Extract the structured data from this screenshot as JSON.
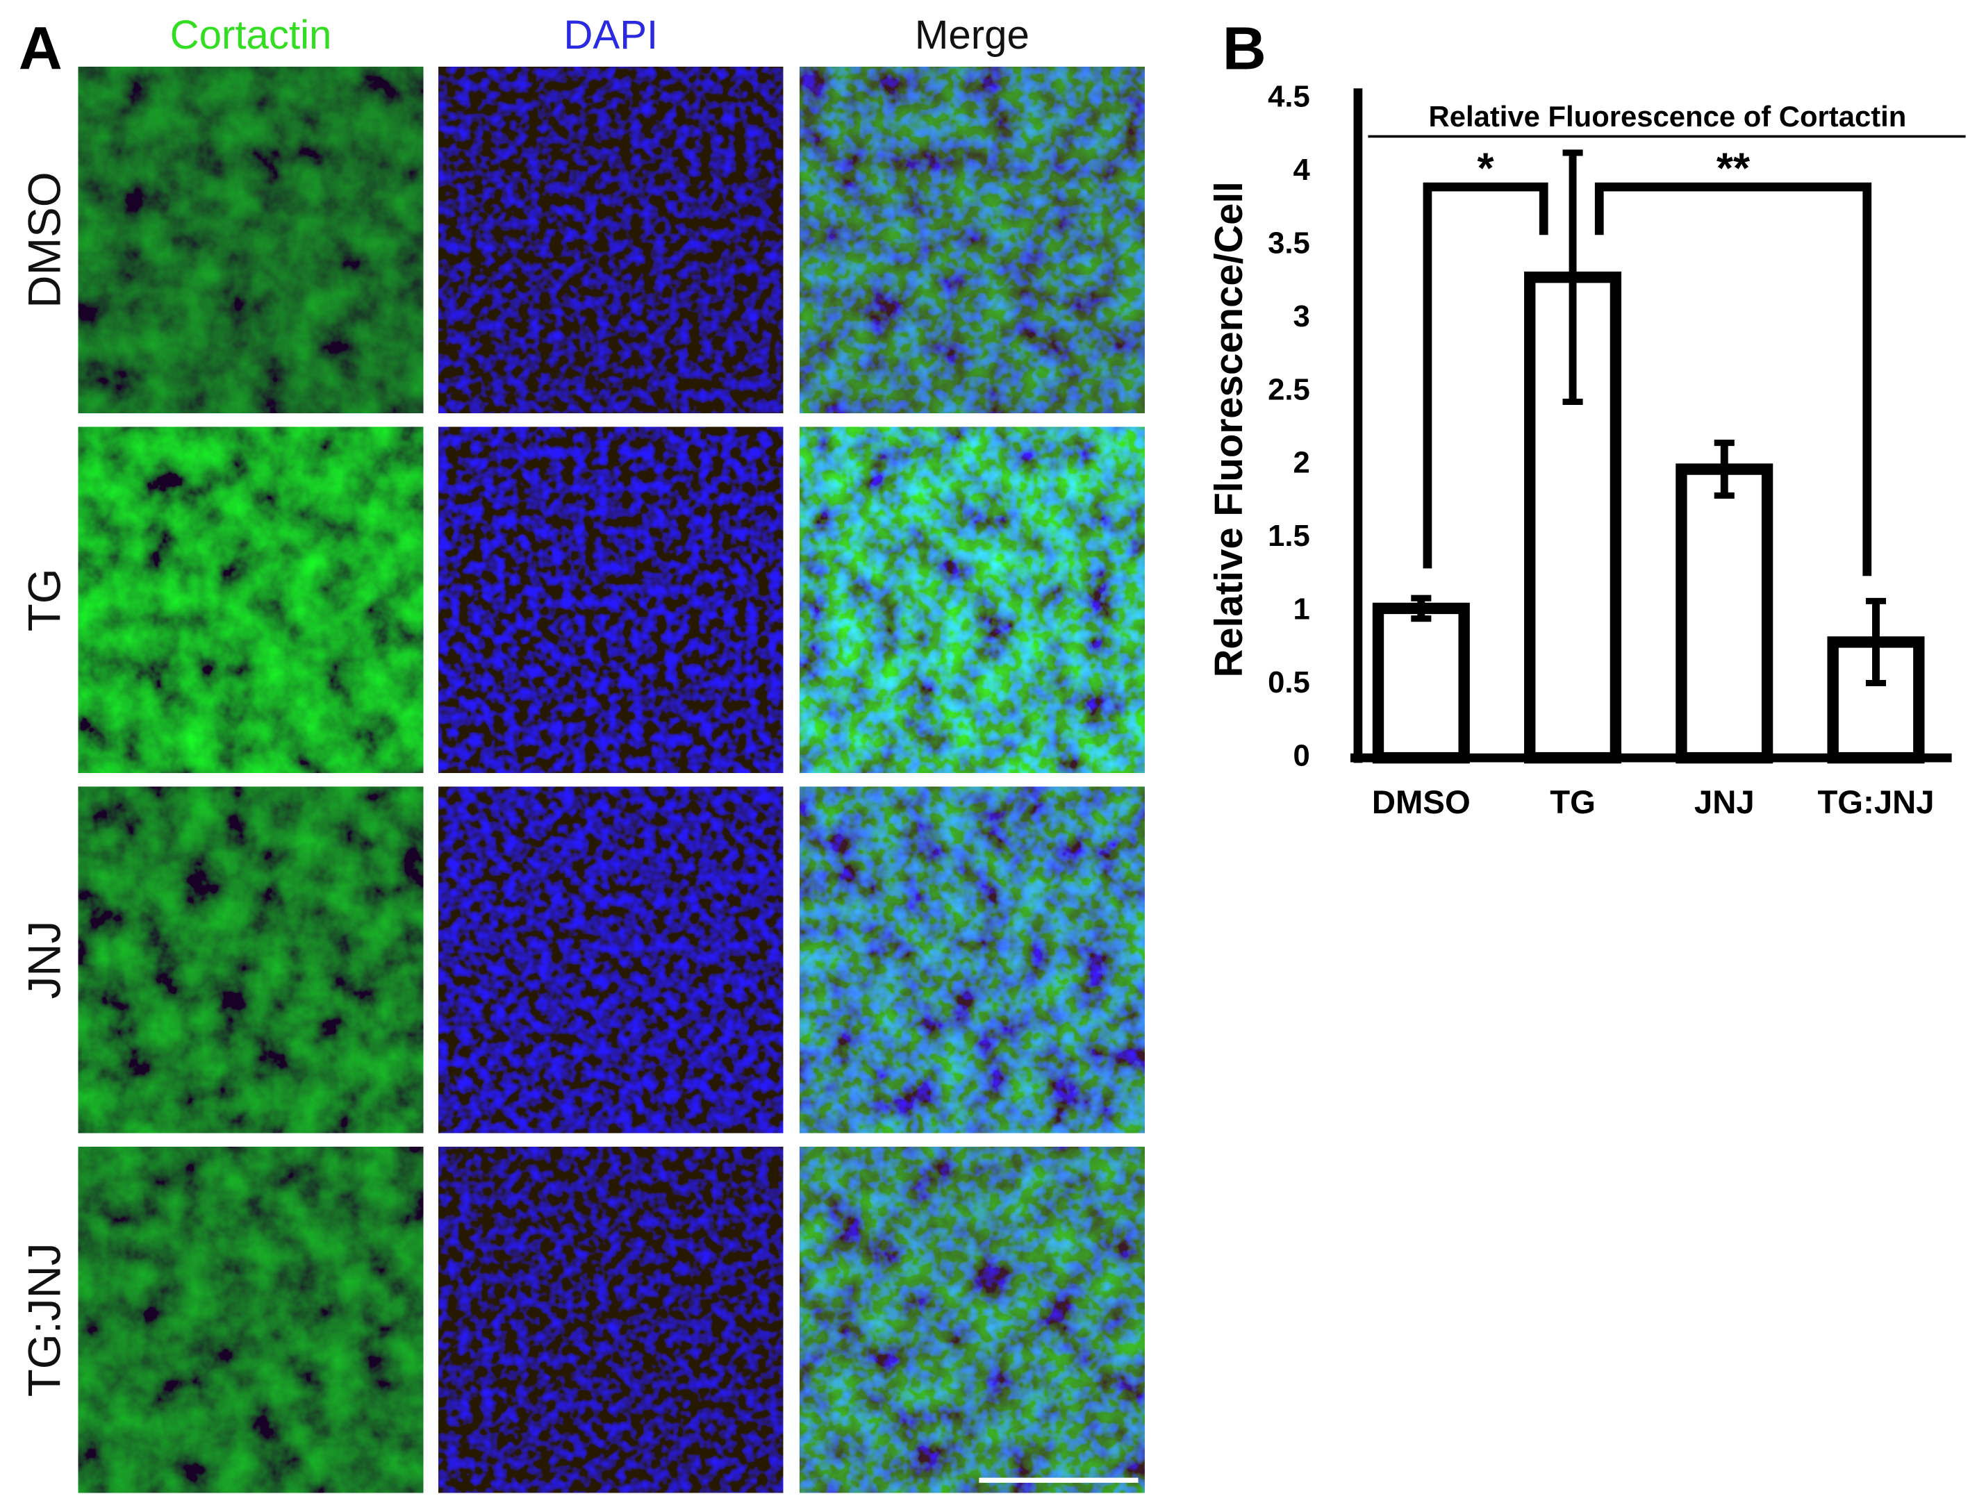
{
  "panel_a": {
    "label": "A",
    "columns": [
      "Cortactin",
      "DAPI",
      "Merge"
    ],
    "rows": [
      "DMSO",
      "TG",
      "JNJ",
      "TG:JNJ"
    ]
  },
  "chart_data": {
    "type": "bar",
    "panel_label": "B",
    "title": "Relative Fluorescence of Cortactin",
    "y_label": "Relative Fluorescence/Cell",
    "categories": [
      "DMSO",
      "TG",
      "JNJ",
      "TG:JNJ"
    ],
    "values": [
      1.02,
      3.28,
      1.97,
      0.79
    ],
    "errors": [
      0.07,
      0.85,
      0.18,
      0.28
    ],
    "color": "#ffffff",
    "ylim": [
      0,
      4.5
    ],
    "yticks": [
      0,
      0.5,
      1,
      1.5,
      2,
      2.5,
      3,
      3.5,
      4,
      4.5
    ],
    "annotations": [
      "*",
      "**"
    ]
  }
}
